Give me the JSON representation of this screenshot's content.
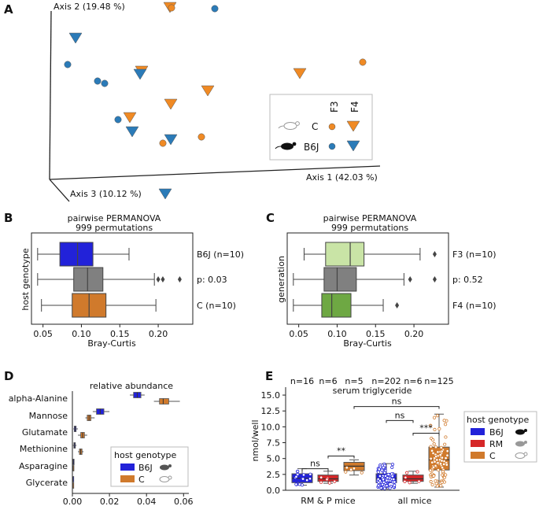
{
  "colors": {
    "orange": "#f08a24",
    "blue": "#2b7bb8",
    "b6j": "#2222d9",
    "rm": "#d62728",
    "c_box": "#d07a2c",
    "gray_box": "#808080",
    "f3_box": "#c9e4a6",
    "f4_box": "#6ea843"
  },
  "panel_a": {
    "label": "A",
    "axis1": "Axis 1 (42.03 %)",
    "axis2": "Axis 2 (19.48 %)",
    "axis3": "Axis 3 (10.12 %)",
    "legend": {
      "col_f3": "F3",
      "col_f4": "F4",
      "row_c": "C",
      "row_b6j": "B6J",
      "mouse_icon_white": "mouse-white-icon",
      "mouse_icon_black": "mouse-black-icon"
    },
    "points": [
      {
        "group": "C",
        "gen": "F4"
      },
      {
        "group": "C",
        "gen": "F3"
      },
      {
        "group": "B6J",
        "gen": "F3"
      },
      {
        "group": "B6J",
        "gen": "F4"
      },
      {
        "group": "C",
        "gen": "F3"
      },
      {
        "group": "B6J",
        "gen": "F3"
      },
      {
        "group": "C",
        "gen": "F4"
      },
      {
        "group": "C",
        "gen": "F4"
      },
      {
        "group": "B6J",
        "gen": "F4"
      },
      {
        "group": "B6J",
        "gen": "F3"
      },
      {
        "group": "B6J",
        "gen": "F3"
      },
      {
        "group": "C",
        "gen": "F4"
      },
      {
        "group": "C",
        "gen": "F4"
      },
      {
        "group": "B6J",
        "gen": "F3"
      },
      {
        "group": "B6J",
        "gen": "F4"
      },
      {
        "group": "C",
        "gen": "F3"
      },
      {
        "group": "C",
        "gen": "F3"
      },
      {
        "group": "B6J",
        "gen": "F4"
      },
      {
        "group": "B6J",
        "gen": "F4"
      },
      {
        "group": "C",
        "gen": "F4"
      }
    ]
  },
  "panel_b": {
    "label": "B",
    "title1": "pairwise PERMANOVA",
    "title2": "999 permutations",
    "ylabel": "host genotype",
    "xlabel": "Bray-Curtis",
    "xticks": [
      "0.05",
      "0.10",
      "0.15",
      "0.20"
    ],
    "labels": [
      "B6J (n=10)",
      "p: 0.03",
      "C (n=10)"
    ]
  },
  "panel_c": {
    "label": "C",
    "title1": "pairwise PERMANOVA",
    "title2": "999 permutations",
    "ylabel": "generation",
    "xlabel": "Bray-Curtis",
    "xticks": [
      "0.05",
      "0.10",
      "0.15",
      "0.20"
    ],
    "labels": [
      "F3 (n=10)",
      "p: 0.52",
      "F4 (n=10)"
    ]
  },
  "panel_d": {
    "label": "D",
    "title": "relative abundance",
    "categories": [
      "alpha-Alanine",
      "Mannose",
      "Glutamate",
      "Methionine",
      "Asparagine",
      "Glycerate"
    ],
    "xticks": [
      "0.00",
      "0.02",
      "0.04",
      "0.06"
    ],
    "legend_title": "host genotype",
    "legend": [
      "B6J",
      "C"
    ]
  },
  "panel_e": {
    "label": "E",
    "title": "serum triglyceride",
    "ylabel": "nmol/well",
    "yticks": [
      "0.0",
      "2.5",
      "5.0",
      "7.5",
      "10.0",
      "12.5",
      "15.0"
    ],
    "xticks": [
      "RM & P mice",
      "all mice"
    ],
    "counts": [
      "n=16",
      "n=6",
      "n=5",
      "n=202",
      "n=6",
      "n=125"
    ],
    "sig": [
      "ns",
      "**",
      "ns",
      "ns",
      "***"
    ],
    "legend_title": "host genotype",
    "legend": [
      "B6J",
      "RM",
      "C"
    ]
  },
  "chart_data": [
    {
      "type": "scatter",
      "panel": "A",
      "title": "",
      "xlabel": "Axis 1 (42.03 %)",
      "ylabel": "Axis 2 (19.48 %)",
      "zlabel": "Axis 3 (10.12 %)",
      "legend": [
        "C F3",
        "C F4",
        "B6J F3",
        "B6J F4"
      ]
    },
    {
      "type": "box",
      "panel": "B",
      "orientation": "horizontal",
      "title": "pairwise PERMANOVA 999 permutations",
      "xlabel": "Bray-Curtis",
      "ylabel": "host genotype",
      "xlim": [
        0.035,
        0.245
      ],
      "series": [
        {
          "name": "B6J (n=10)",
          "min": 0.043,
          "q1": 0.072,
          "median": 0.095,
          "q3": 0.115,
          "max": 0.162,
          "outliers": [],
          "color": "#2222d9"
        },
        {
          "name": "p: 0.03",
          "min": 0.043,
          "q1": 0.09,
          "median": 0.108,
          "q3": 0.128,
          "max": 0.195,
          "outliers": [
            0.2,
            0.206,
            0.228
          ],
          "color": "#808080"
        },
        {
          "name": "C (n=10)",
          "min": 0.048,
          "q1": 0.088,
          "median": 0.11,
          "q3": 0.132,
          "max": 0.197,
          "outliers": [],
          "color": "#d07a2c"
        }
      ]
    },
    {
      "type": "box",
      "panel": "C",
      "orientation": "horizontal",
      "title": "pairwise PERMANOVA 999 permutations",
      "xlabel": "Bray-Curtis",
      "ylabel": "generation",
      "xlim": [
        0.035,
        0.245
      ],
      "series": [
        {
          "name": "F3 (n=10)",
          "min": 0.057,
          "q1": 0.085,
          "median": 0.117,
          "q3": 0.135,
          "max": 0.208,
          "outliers": [
            0.227
          ],
          "color": "#c9e4a6"
        },
        {
          "name": "p: 0.52",
          "min": 0.043,
          "q1": 0.083,
          "median": 0.1,
          "q3": 0.125,
          "max": 0.187,
          "outliers": [
            0.195,
            0.227
          ],
          "color": "#808080"
        },
        {
          "name": "F4 (n=10)",
          "min": 0.043,
          "q1": 0.08,
          "median": 0.093,
          "q3": 0.118,
          "max": 0.16,
          "outliers": [
            0.178
          ],
          "color": "#6ea843"
        }
      ]
    },
    {
      "type": "box",
      "panel": "D",
      "orientation": "horizontal",
      "title": "relative abundance",
      "xlabel": "",
      "ylabel": "",
      "xlim": [
        0,
        0.062
      ],
      "categories": [
        "alpha-Alanine",
        "Mannose",
        "Glutamate",
        "Methionine",
        "Asparagine",
        "Glycerate"
      ],
      "series": [
        {
          "name": "B6J",
          "color": "#2222d9",
          "boxes": [
            {
              "min": 0.031,
              "q1": 0.033,
              "median": 0.035,
              "q3": 0.037,
              "max": 0.039
            },
            {
              "min": 0.011,
              "q1": 0.013,
              "median": 0.015,
              "q3": 0.017,
              "max": 0.02
            },
            {
              "min": 0.0005,
              "q1": 0.001,
              "median": 0.0015,
              "q3": 0.002,
              "max": 0.003
            },
            {
              "min": 0.0003,
              "q1": 0.0008,
              "median": 0.0012,
              "q3": 0.0016,
              "max": 0.0022
            },
            {
              "min": 0.0001,
              "q1": 0.0003,
              "median": 0.0005,
              "q3": 0.0007,
              "max": 0.001
            },
            {
              "min": 0.0,
              "q1": 0.0001,
              "median": 0.0002,
              "q3": 0.0003,
              "max": 0.0005
            }
          ]
        },
        {
          "name": "C",
          "color": "#d07a2c",
          "boxes": [
            {
              "min": 0.044,
              "q1": 0.047,
              "median": 0.049,
              "q3": 0.052,
              "max": 0.058
            },
            {
              "min": 0.007,
              "q1": 0.008,
              "median": 0.009,
              "q3": 0.01,
              "max": 0.012
            },
            {
              "min": 0.003,
              "q1": 0.0045,
              "median": 0.0055,
              "q3": 0.0065,
              "max": 0.008
            },
            {
              "min": 0.003,
              "q1": 0.0038,
              "median": 0.0045,
              "q3": 0.0052,
              "max": 0.006
            },
            {
              "min": 0.0,
              "q1": 0.0002,
              "median": 0.0003,
              "q3": 0.0004,
              "max": 0.0006
            },
            {
              "min": 0.0,
              "q1": 0.0001,
              "median": 0.0001,
              "q3": 0.0002,
              "max": 0.0003
            }
          ]
        }
      ]
    },
    {
      "type": "box",
      "panel": "E",
      "orientation": "vertical",
      "title": "serum triglyceride",
      "xlabel": "",
      "ylabel": "nmol/well",
      "ylim": [
        0,
        16
      ],
      "categories": [
        "RM & P mice",
        "all mice"
      ],
      "series": [
        {
          "name": "B6J",
          "color": "#2222d9",
          "boxes": [
            {
              "min": 0.8,
              "q1": 1.2,
              "median": 1.9,
              "q3": 2.6,
              "max": 3.4,
              "n": 16
            },
            {
              "min": 0.2,
              "q1": 1.2,
              "median": 1.9,
              "q3": 2.6,
              "max": 4.2,
              "n": 202
            }
          ]
        },
        {
          "name": "RM",
          "color": "#d62728",
          "boxes": [
            {
              "min": 1.1,
              "q1": 1.4,
              "median": 1.8,
              "q3": 2.4,
              "max": 3.0,
              "n": 6
            },
            {
              "min": 1.1,
              "q1": 1.4,
              "median": 1.8,
              "q3": 2.4,
              "max": 3.0,
              "n": 6
            }
          ]
        },
        {
          "name": "C",
          "color": "#d07a2c",
          "boxes": [
            {
              "min": 2.4,
              "q1": 3.1,
              "median": 3.8,
              "q3": 4.4,
              "max": 4.8,
              "n": 5
            },
            {
              "min": 0.5,
              "q1": 3.2,
              "median": 4.8,
              "q3": 6.8,
              "max": 12.0,
              "n": 125
            }
          ]
        }
      ]
    }
  ]
}
